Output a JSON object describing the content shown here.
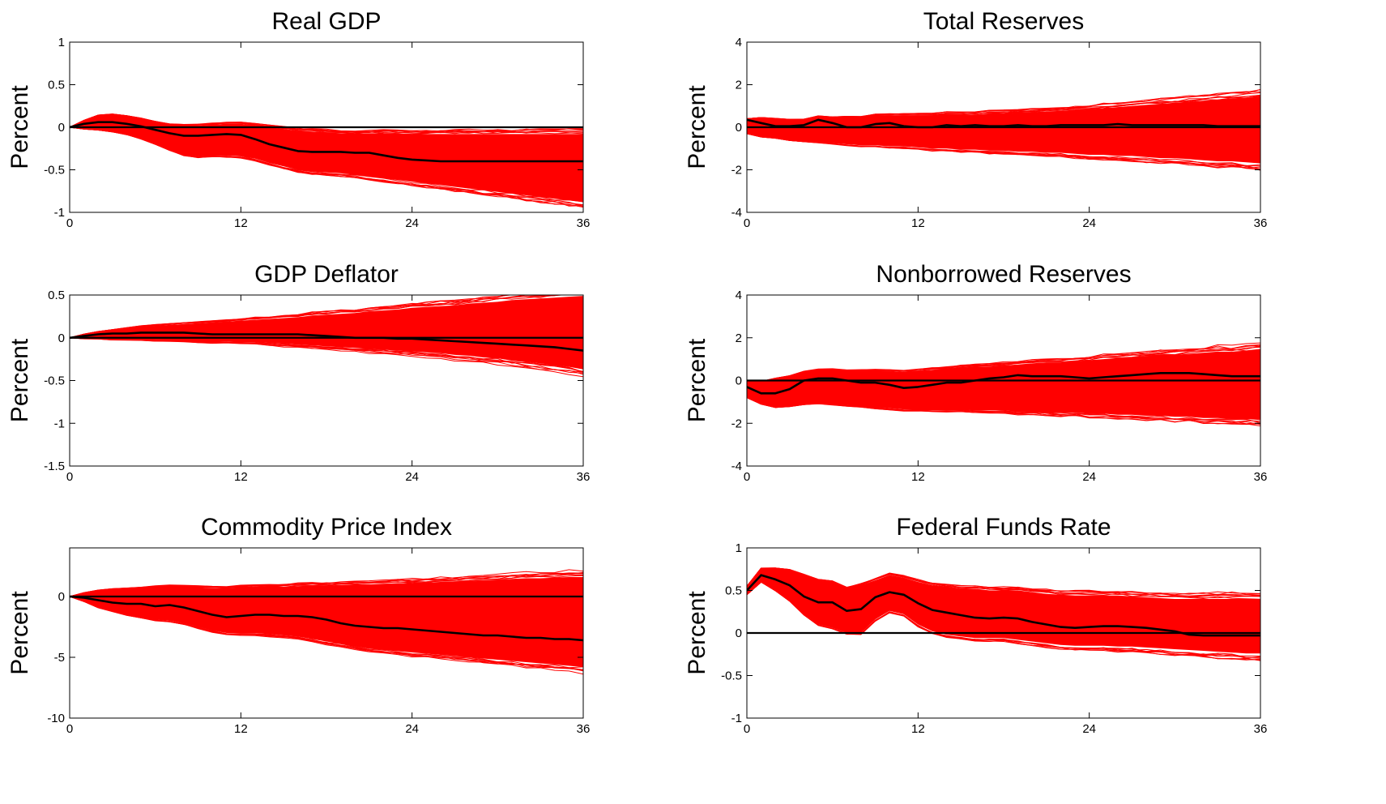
{
  "chart_data": [
    {
      "type": "line",
      "title": "Real GDP",
      "ylabel": "Percent",
      "xlim": [
        0,
        36
      ],
      "ylim": [
        -1,
        1
      ],
      "xticks": [
        0,
        12,
        24,
        36
      ],
      "yticks": [
        -1,
        -0.5,
        0,
        0.5,
        1
      ],
      "ytick_labels": [
        "-1",
        "-0.5",
        "0",
        "0.5",
        "1"
      ],
      "band_color": "#ff0000",
      "x": [
        0,
        1,
        2,
        3,
        4,
        5,
        6,
        7,
        8,
        9,
        10,
        11,
        12,
        13,
        14,
        15,
        16,
        17,
        18,
        19,
        20,
        21,
        22,
        23,
        24,
        25,
        26,
        27,
        28,
        29,
        30,
        31,
        32,
        33,
        34,
        35,
        36
      ],
      "series": [
        {
          "role": "median",
          "color": "#000000",
          "values": [
            0,
            0.04,
            0.06,
            0.06,
            0.04,
            0.01,
            -0.03,
            -0.07,
            -0.1,
            -0.1,
            -0.09,
            -0.08,
            -0.09,
            -0.14,
            -0.2,
            -0.24,
            -0.28,
            -0.29,
            -0.29,
            -0.29,
            -0.3,
            -0.3,
            -0.33,
            -0.36,
            -0.38,
            -0.39,
            -0.4,
            -0.4,
            -0.4,
            -0.4,
            -0.4,
            -0.4,
            -0.4,
            -0.4,
            -0.4,
            -0.4,
            -0.4
          ]
        },
        {
          "role": "band_upper",
          "values": [
            0,
            0.08,
            0.14,
            0.15,
            0.13,
            0.1,
            0.06,
            0.03,
            0.02,
            0.02,
            0.03,
            0.04,
            0.04,
            0.02,
            0.0,
            -0.02,
            -0.04,
            -0.05,
            -0.06,
            -0.07,
            -0.07,
            -0.07,
            -0.07,
            -0.08,
            -0.08,
            -0.08,
            -0.08,
            -0.08,
            -0.08,
            -0.08,
            -0.08,
            -0.08,
            -0.08,
            -0.08,
            -0.08,
            -0.08,
            -0.08
          ]
        },
        {
          "role": "band_lower",
          "values": [
            0,
            -0.02,
            -0.03,
            -0.05,
            -0.08,
            -0.13,
            -0.19,
            -0.26,
            -0.32,
            -0.34,
            -0.33,
            -0.33,
            -0.34,
            -0.37,
            -0.42,
            -0.46,
            -0.5,
            -0.52,
            -0.53,
            -0.54,
            -0.56,
            -0.58,
            -0.6,
            -0.62,
            -0.64,
            -0.66,
            -0.68,
            -0.7,
            -0.72,
            -0.74,
            -0.76,
            -0.78,
            -0.8,
            -0.82,
            -0.84,
            -0.86,
            -0.88
          ]
        }
      ]
    },
    {
      "type": "line",
      "title": "Total Reserves",
      "ylabel": "Percent",
      "xlim": [
        0,
        36
      ],
      "ylim": [
        -4,
        4
      ],
      "xticks": [
        0,
        12,
        24,
        36
      ],
      "yticks": [
        -4,
        -2,
        0,
        2,
        4
      ],
      "ytick_labels": [
        "-4",
        "-2",
        "0",
        "2",
        "4"
      ],
      "band_color": "#ff0000",
      "x": [
        0,
        1,
        2,
        3,
        4,
        5,
        6,
        7,
        8,
        9,
        10,
        11,
        12,
        13,
        14,
        15,
        16,
        17,
        18,
        19,
        20,
        21,
        22,
        23,
        24,
        25,
        26,
        27,
        28,
        29,
        30,
        31,
        32,
        33,
        34,
        35,
        36
      ],
      "series": [
        {
          "role": "median",
          "color": "#000000",
          "values": [
            0.35,
            0.2,
            0.05,
            0.05,
            0.1,
            0.35,
            0.2,
            0.0,
            0.0,
            0.15,
            0.2,
            0.05,
            0.0,
            0.0,
            0.1,
            0.05,
            0.1,
            0.05,
            0.05,
            0.1,
            0.05,
            0.05,
            0.1,
            0.1,
            0.1,
            0.1,
            0.15,
            0.1,
            0.1,
            0.1,
            0.1,
            0.1,
            0.1,
            0.05,
            0.05,
            0.05,
            0.05
          ]
        },
        {
          "role": "band_upper",
          "values": [
            0.4,
            0.45,
            0.4,
            0.35,
            0.35,
            0.5,
            0.45,
            0.45,
            0.45,
            0.55,
            0.55,
            0.55,
            0.55,
            0.55,
            0.6,
            0.6,
            0.6,
            0.65,
            0.65,
            0.7,
            0.7,
            0.75,
            0.75,
            0.8,
            0.85,
            0.9,
            0.95,
            1.0,
            1.05,
            1.1,
            1.15,
            1.2,
            1.25,
            1.3,
            1.35,
            1.4,
            1.45
          ]
        },
        {
          "role": "band_lower",
          "values": [
            -0.3,
            -0.45,
            -0.5,
            -0.6,
            -0.65,
            -0.7,
            -0.75,
            -0.8,
            -0.85,
            -0.85,
            -0.9,
            -0.9,
            -0.95,
            -1.0,
            -1.0,
            -1.05,
            -1.05,
            -1.1,
            -1.1,
            -1.15,
            -1.15,
            -1.2,
            -1.2,
            -1.25,
            -1.3,
            -1.3,
            -1.35,
            -1.35,
            -1.4,
            -1.45,
            -1.45,
            -1.5,
            -1.55,
            -1.6,
            -1.6,
            -1.65,
            -1.7
          ]
        }
      ]
    },
    {
      "type": "line",
      "title": "GDP Deflator",
      "ylabel": "Percent",
      "xlim": [
        0,
        36
      ],
      "ylim": [
        -1.5,
        0.5
      ],
      "xticks": [
        0,
        12,
        24,
        36
      ],
      "yticks": [
        -1.5,
        -1,
        -0.5,
        0,
        0.5
      ],
      "ytick_labels": [
        "-1.5",
        "-1",
        "-0.5",
        "0",
        "0.5"
      ],
      "band_color": "#ff0000",
      "x": [
        0,
        1,
        2,
        3,
        4,
        5,
        6,
        7,
        8,
        9,
        10,
        11,
        12,
        13,
        14,
        15,
        16,
        17,
        18,
        19,
        20,
        21,
        22,
        23,
        24,
        25,
        26,
        27,
        28,
        29,
        30,
        31,
        32,
        33,
        34,
        35,
        36
      ],
      "series": [
        {
          "role": "median",
          "color": "#000000",
          "values": [
            0,
            0.02,
            0.04,
            0.05,
            0.05,
            0.06,
            0.06,
            0.06,
            0.06,
            0.05,
            0.04,
            0.04,
            0.04,
            0.04,
            0.04,
            0.04,
            0.04,
            0.03,
            0.02,
            0.01,
            0.0,
            0.0,
            0.0,
            -0.01,
            -0.01,
            -0.02,
            -0.03,
            -0.04,
            -0.05,
            -0.06,
            -0.07,
            -0.08,
            -0.09,
            -0.1,
            -0.11,
            -0.13,
            -0.15
          ]
        },
        {
          "role": "band_upper",
          "values": [
            0,
            0.04,
            0.07,
            0.09,
            0.11,
            0.13,
            0.14,
            0.15,
            0.16,
            0.17,
            0.18,
            0.19,
            0.2,
            0.21,
            0.22,
            0.23,
            0.24,
            0.26,
            0.27,
            0.28,
            0.29,
            0.31,
            0.32,
            0.33,
            0.35,
            0.36,
            0.37,
            0.38,
            0.4,
            0.41,
            0.42,
            0.44,
            0.45,
            0.46,
            0.47,
            0.48,
            0.49
          ]
        },
        {
          "role": "band_lower",
          "values": [
            0,
            -0.01,
            -0.01,
            -0.02,
            -0.02,
            -0.02,
            -0.03,
            -0.03,
            -0.03,
            -0.04,
            -0.04,
            -0.04,
            -0.05,
            -0.05,
            -0.06,
            -0.07,
            -0.08,
            -0.09,
            -0.1,
            -0.11,
            -0.12,
            -0.13,
            -0.14,
            -0.15,
            -0.16,
            -0.17,
            -0.18,
            -0.2,
            -0.21,
            -0.23,
            -0.24,
            -0.26,
            -0.28,
            -0.3,
            -0.32,
            -0.34,
            -0.37
          ]
        }
      ]
    },
    {
      "type": "line",
      "title": "Nonborrowed Reserves",
      "ylabel": "Percent",
      "xlim": [
        0,
        36
      ],
      "ylim": [
        -4,
        4
      ],
      "xticks": [
        0,
        12,
        24,
        36
      ],
      "yticks": [
        -4,
        -2,
        0,
        2,
        4
      ],
      "ytick_labels": [
        "-4",
        "-2",
        "0",
        "2",
        "4"
      ],
      "band_color": "#ff0000",
      "x": [
        0,
        1,
        2,
        3,
        4,
        5,
        6,
        7,
        8,
        9,
        10,
        11,
        12,
        13,
        14,
        15,
        16,
        17,
        18,
        19,
        20,
        21,
        22,
        23,
        24,
        25,
        26,
        27,
        28,
        29,
        30,
        31,
        32,
        33,
        34,
        35,
        36
      ],
      "series": [
        {
          "role": "median",
          "color": "#000000",
          "values": [
            -0.3,
            -0.6,
            -0.6,
            -0.4,
            0.0,
            0.1,
            0.1,
            0.0,
            -0.1,
            -0.1,
            -0.2,
            -0.35,
            -0.3,
            -0.2,
            -0.1,
            -0.1,
            0.0,
            0.1,
            0.15,
            0.25,
            0.2,
            0.2,
            0.2,
            0.15,
            0.1,
            0.15,
            0.2,
            0.25,
            0.3,
            0.35,
            0.35,
            0.35,
            0.3,
            0.25,
            0.2,
            0.2,
            0.2
          ]
        },
        {
          "role": "band_upper",
          "values": [
            0.0,
            -0.05,
            0.1,
            0.2,
            0.4,
            0.5,
            0.5,
            0.45,
            0.45,
            0.45,
            0.45,
            0.4,
            0.45,
            0.5,
            0.55,
            0.6,
            0.65,
            0.65,
            0.7,
            0.75,
            0.8,
            0.85,
            0.85,
            0.9,
            0.95,
            1.0,
            1.05,
            1.1,
            1.15,
            1.2,
            1.2,
            1.25,
            1.3,
            1.35,
            1.35,
            1.4,
            1.45
          ]
        },
        {
          "role": "band_lower",
          "values": [
            -0.8,
            -1.1,
            -1.25,
            -1.2,
            -1.1,
            -1.05,
            -1.1,
            -1.15,
            -1.2,
            -1.25,
            -1.3,
            -1.35,
            -1.35,
            -1.35,
            -1.35,
            -1.35,
            -1.4,
            -1.4,
            -1.4,
            -1.45,
            -1.45,
            -1.5,
            -1.5,
            -1.5,
            -1.55,
            -1.55,
            -1.6,
            -1.6,
            -1.65,
            -1.65,
            -1.7,
            -1.7,
            -1.75,
            -1.75,
            -1.8,
            -1.8,
            -1.85
          ]
        }
      ]
    },
    {
      "type": "line",
      "title": "Commodity Price Index",
      "ylabel": "Percent",
      "xlim": [
        0,
        36
      ],
      "ylim": [
        -10,
        4
      ],
      "xticks": [
        0,
        12,
        24,
        36
      ],
      "yticks": [
        -10,
        -5,
        0
      ],
      "ytick_labels": [
        "-10",
        "-5",
        "0"
      ],
      "band_color": "#ff0000",
      "x": [
        0,
        1,
        2,
        3,
        4,
        5,
        6,
        7,
        8,
        9,
        10,
        11,
        12,
        13,
        14,
        15,
        16,
        17,
        18,
        19,
        20,
        21,
        22,
        23,
        24,
        25,
        26,
        27,
        28,
        29,
        30,
        31,
        32,
        33,
        34,
        35,
        36
      ],
      "series": [
        {
          "role": "median",
          "color": "#000000",
          "values": [
            0,
            -0.1,
            -0.3,
            -0.5,
            -0.6,
            -0.6,
            -0.8,
            -0.7,
            -0.9,
            -1.2,
            -1.5,
            -1.7,
            -1.6,
            -1.5,
            -1.5,
            -1.6,
            -1.6,
            -1.7,
            -1.9,
            -2.2,
            -2.4,
            -2.5,
            -2.6,
            -2.6,
            -2.7,
            -2.8,
            -2.9,
            -3.0,
            -3.1,
            -3.2,
            -3.2,
            -3.3,
            -3.4,
            -3.4,
            -3.5,
            -3.5,
            -3.6
          ]
        },
        {
          "role": "band_upper",
          "values": [
            0,
            0.3,
            0.5,
            0.6,
            0.65,
            0.7,
            0.8,
            0.85,
            0.8,
            0.75,
            0.7,
            0.7,
            0.75,
            0.8,
            0.8,
            0.8,
            0.85,
            0.9,
            0.9,
            0.95,
            1.0,
            1.0,
            1.05,
            1.1,
            1.1,
            1.15,
            1.2,
            1.25,
            1.3,
            1.35,
            1.4,
            1.45,
            1.5,
            1.5,
            1.55,
            1.6,
            1.6
          ]
        },
        {
          "role": "band_lower",
          "values": [
            0,
            -0.4,
            -0.9,
            -1.2,
            -1.5,
            -1.7,
            -1.9,
            -2.0,
            -2.2,
            -2.5,
            -2.8,
            -3.0,
            -3.0,
            -3.0,
            -3.1,
            -3.2,
            -3.3,
            -3.5,
            -3.7,
            -3.9,
            -4.1,
            -4.3,
            -4.4,
            -4.5,
            -4.6,
            -4.7,
            -4.8,
            -4.9,
            -5.0,
            -5.1,
            -5.2,
            -5.3,
            -5.4,
            -5.5,
            -5.6,
            -5.7,
            -5.8
          ]
        }
      ]
    },
    {
      "type": "line",
      "title": "Federal Funds Rate",
      "ylabel": "Percent",
      "xlim": [
        0,
        36
      ],
      "ylim": [
        -1,
        1
      ],
      "xticks": [
        0,
        12,
        24,
        36
      ],
      "yticks": [
        -1,
        -0.5,
        0,
        0.5,
        1
      ],
      "ytick_labels": [
        "-1",
        "-0.5",
        "0",
        "0.5",
        "1"
      ],
      "band_color": "#ff0000",
      "x": [
        0,
        1,
        2,
        3,
        4,
        5,
        6,
        7,
        8,
        9,
        10,
        11,
        12,
        13,
        14,
        15,
        16,
        17,
        18,
        19,
        20,
        21,
        22,
        23,
        24,
        25,
        26,
        27,
        28,
        29,
        30,
        31,
        32,
        33,
        34,
        35,
        36
      ],
      "series": [
        {
          "role": "median",
          "color": "#000000",
          "values": [
            0.5,
            0.68,
            0.63,
            0.56,
            0.43,
            0.36,
            0.36,
            0.26,
            0.28,
            0.42,
            0.48,
            0.45,
            0.35,
            0.27,
            0.24,
            0.21,
            0.18,
            0.17,
            0.18,
            0.17,
            0.13,
            0.1,
            0.07,
            0.06,
            0.07,
            0.08,
            0.08,
            0.07,
            0.06,
            0.04,
            0.02,
            -0.02,
            -0.03,
            -0.03,
            -0.03,
            -0.03,
            -0.03
          ]
        },
        {
          "role": "band_upper",
          "values": [
            0.55,
            0.76,
            0.76,
            0.74,
            0.68,
            0.62,
            0.6,
            0.52,
            0.56,
            0.62,
            0.68,
            0.65,
            0.6,
            0.56,
            0.54,
            0.52,
            0.52,
            0.5,
            0.5,
            0.5,
            0.48,
            0.46,
            0.45,
            0.44,
            0.44,
            0.44,
            0.44,
            0.43,
            0.42,
            0.41,
            0.4,
            0.4,
            0.4,
            0.4,
            0.4,
            0.4,
            0.4
          ]
        },
        {
          "role": "band_lower",
          "values": [
            0.45,
            0.6,
            0.5,
            0.38,
            0.22,
            0.1,
            0.06,
            0.0,
            0.0,
            0.16,
            0.26,
            0.22,
            0.1,
            0.02,
            -0.02,
            -0.04,
            -0.06,
            -0.06,
            -0.06,
            -0.08,
            -0.1,
            -0.12,
            -0.14,
            -0.15,
            -0.15,
            -0.15,
            -0.16,
            -0.16,
            -0.17,
            -0.18,
            -0.19,
            -0.2,
            -0.21,
            -0.22,
            -0.23,
            -0.24,
            -0.24
          ]
        }
      ]
    }
  ]
}
